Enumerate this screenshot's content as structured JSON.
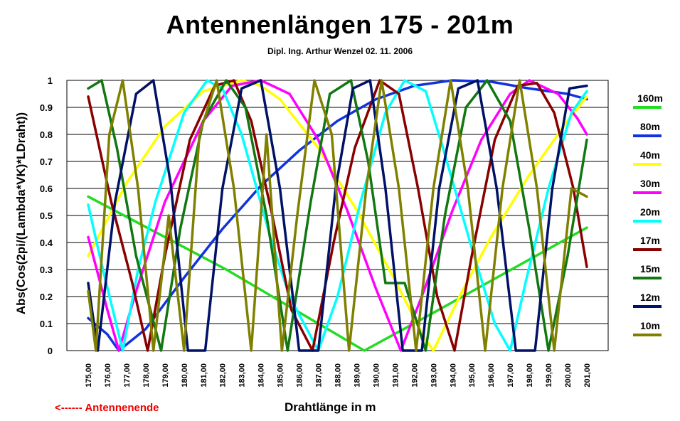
{
  "chart_data": {
    "type": "line",
    "title": "Antennenlängen 175 - 201m",
    "subtitle": "Dipl. Ing. Arthur Wenzel  02. 11. 2006",
    "xlabel": "Drahtlänge in m",
    "ylabel": "Abs(Cos(2pi/(Lambda*VK)*LDraht))",
    "annotation": "<------  Antennenende",
    "xlim": [
      175,
      201
    ],
    "ylim": [
      0,
      1
    ],
    "x_ticks": [
      "175,00",
      "176,00",
      "177,00",
      "178,00",
      "179,00",
      "180,00",
      "181,00",
      "182,00",
      "183,00",
      "184,00",
      "185,00",
      "186,00",
      "187,00",
      "188,00",
      "189,00",
      "190,00",
      "191,00",
      "192,00",
      "193,00",
      "194,00",
      "195,00",
      "196,00",
      "197,00",
      "198,00",
      "199,00",
      "200,00",
      "201,00"
    ],
    "y_ticks": [
      "0",
      "0.1",
      "0.2",
      "0.3",
      "0.4",
      "0.5",
      "0.6",
      "0.7",
      "0.8",
      "0.9",
      "1"
    ],
    "grid": "horizontal",
    "legend_position": "right",
    "series": [
      {
        "name": "160m",
        "color": "#22dd22",
        "x": [
          175,
          182.2,
          189.4,
          193.0,
          201
        ],
        "y": [
          0.57,
          0.3,
          0.0,
          0.14,
          0.455
        ]
      },
      {
        "name": "80m",
        "color": "#1133dd",
        "x": [
          175,
          176,
          176.6,
          178,
          180,
          182,
          184,
          186,
          188,
          190,
          192,
          194,
          196,
          198,
          200,
          201
        ],
        "y": [
          0.12,
          0.06,
          0.0,
          0.08,
          0.27,
          0.45,
          0.61,
          0.74,
          0.85,
          0.93,
          0.98,
          1.0,
          0.995,
          0.97,
          0.95,
          0.93
        ]
      },
      {
        "name": "40m",
        "color": "#ffff00",
        "x": [
          175,
          177,
          179,
          181,
          183,
          184,
          185,
          187,
          189,
          191,
          192.5,
          193,
          194.5,
          196,
          198,
          200,
          201
        ],
        "y": [
          0.35,
          0.62,
          0.83,
          0.96,
          1.0,
          0.98,
          0.93,
          0.75,
          0.52,
          0.26,
          0.05,
          0.0,
          0.22,
          0.42,
          0.65,
          0.85,
          0.94
        ]
      },
      {
        "name": "30m",
        "color": "#ff00ff",
        "x": [
          175,
          176,
          176.6,
          177.5,
          179,
          181,
          182.5,
          184,
          185.5,
          187,
          188.5,
          190,
          191.3,
          192.5,
          194,
          195.5,
          197,
          198,
          199.5,
          200.5,
          201
        ],
        "y": [
          0.42,
          0.15,
          0.0,
          0.22,
          0.55,
          0.85,
          0.98,
          1.0,
          0.95,
          0.78,
          0.52,
          0.23,
          0.0,
          0.22,
          0.52,
          0.78,
          0.95,
          1.0,
          0.95,
          0.86,
          0.8
        ]
      },
      {
        "name": "20m",
        "color": "#00ffff",
        "x": [
          175,
          175.6,
          176.8,
          177.6,
          178.5,
          180,
          181.2,
          182,
          183,
          184.5,
          185.5,
          187,
          188,
          189.2,
          190.5,
          191.5,
          192.6,
          193.5,
          195,
          196.2,
          197,
          197.8,
          199,
          200.2,
          201
        ],
        "y": [
          0.54,
          0.35,
          0.0,
          0.3,
          0.55,
          0.88,
          1.0,
          0.97,
          0.8,
          0.42,
          0.2,
          0.0,
          0.2,
          0.55,
          0.88,
          1.0,
          0.96,
          0.75,
          0.38,
          0.1,
          0.0,
          0.25,
          0.6,
          0.88,
          0.96
        ]
      },
      {
        "name": "17m",
        "color": "#880000",
        "x": [
          175,
          176.2,
          177.3,
          178.1,
          179.0,
          180.3,
          181.6,
          182.6,
          183.5,
          184.6,
          185.6,
          186.7,
          187.8,
          188.9,
          190.2,
          191.2,
          192.2,
          193.2,
          194.1,
          195.0,
          196.2,
          197.4,
          198.4,
          199.3,
          200.3,
          201
        ],
        "y": [
          0.94,
          0.55,
          0.25,
          0.0,
          0.35,
          0.78,
          0.98,
          1.0,
          0.85,
          0.5,
          0.15,
          0.0,
          0.4,
          0.75,
          1.0,
          0.95,
          0.6,
          0.2,
          0.0,
          0.35,
          0.78,
          0.98,
          0.99,
          0.88,
          0.6,
          0.31
        ]
      },
      {
        "name": "15m",
        "color": "#117711",
        "x": [
          175,
          175.7,
          176.5,
          177.5,
          178.8,
          179.8,
          181.0,
          182.2,
          183.2,
          184.3,
          185.4,
          186.6,
          187.6,
          188.7,
          189.6,
          190.5,
          191.5,
          192.6,
          193.6,
          194.7,
          195.8,
          197.0,
          198.0,
          199.0,
          200.0,
          201
        ],
        "y": [
          0.97,
          1.0,
          0.75,
          0.35,
          0.0,
          0.45,
          0.85,
          1.0,
          0.9,
          0.5,
          0.0,
          0.55,
          0.95,
          1.0,
          0.7,
          0.25,
          0.25,
          0.0,
          0.5,
          0.9,
          1.0,
          0.85,
          0.45,
          0.0,
          0.35,
          0.78
        ]
      },
      {
        "name": "12m",
        "color": "#001166",
        "x": [
          175,
          175.5,
          176.4,
          177.5,
          178.4,
          179.3,
          180.2,
          181.1,
          182.0,
          183.0,
          184.0,
          185.0,
          186.0,
          187.0,
          187.9,
          188.8,
          189.7,
          190.5,
          191.4,
          192.4,
          193.3,
          194.3,
          195.3,
          196.3,
          197.3,
          198.3,
          199.2,
          200.1,
          201
        ],
        "y": [
          0.25,
          0.0,
          0.55,
          0.95,
          1.0,
          0.62,
          0.0,
          0.0,
          0.6,
          0.97,
          1.0,
          0.6,
          0.0,
          0.0,
          0.6,
          0.97,
          1.0,
          0.6,
          0.0,
          0.0,
          0.6,
          0.97,
          1.0,
          0.6,
          0.0,
          0.0,
          0.6,
          0.97,
          0.98
        ]
      },
      {
        "name": "10m",
        "color": "#808000",
        "x": [
          175,
          175.4,
          176.1,
          176.8,
          177.6,
          178.4,
          179.2,
          180.0,
          180.8,
          181.7,
          182.6,
          183.5,
          184.3,
          185.1,
          185.9,
          186.8,
          187.7,
          188.6,
          189.5,
          190.3,
          191.2,
          192.1,
          193.0,
          193.9,
          194.8,
          195.7,
          196.6,
          197.5,
          198.4,
          199.3,
          200.2,
          201
        ],
        "y": [
          0.22,
          0.0,
          0.8,
          1.0,
          0.6,
          0.0,
          0.5,
          0.0,
          0.8,
          1.0,
          0.6,
          0.0,
          0.8,
          0.0,
          0.5,
          1.0,
          0.8,
          0.0,
          0.6,
          1.0,
          0.6,
          0.0,
          0.6,
          1.0,
          0.6,
          0.0,
          0.6,
          1.0,
          0.6,
          0.0,
          0.6,
          0.57
        ]
      }
    ]
  }
}
